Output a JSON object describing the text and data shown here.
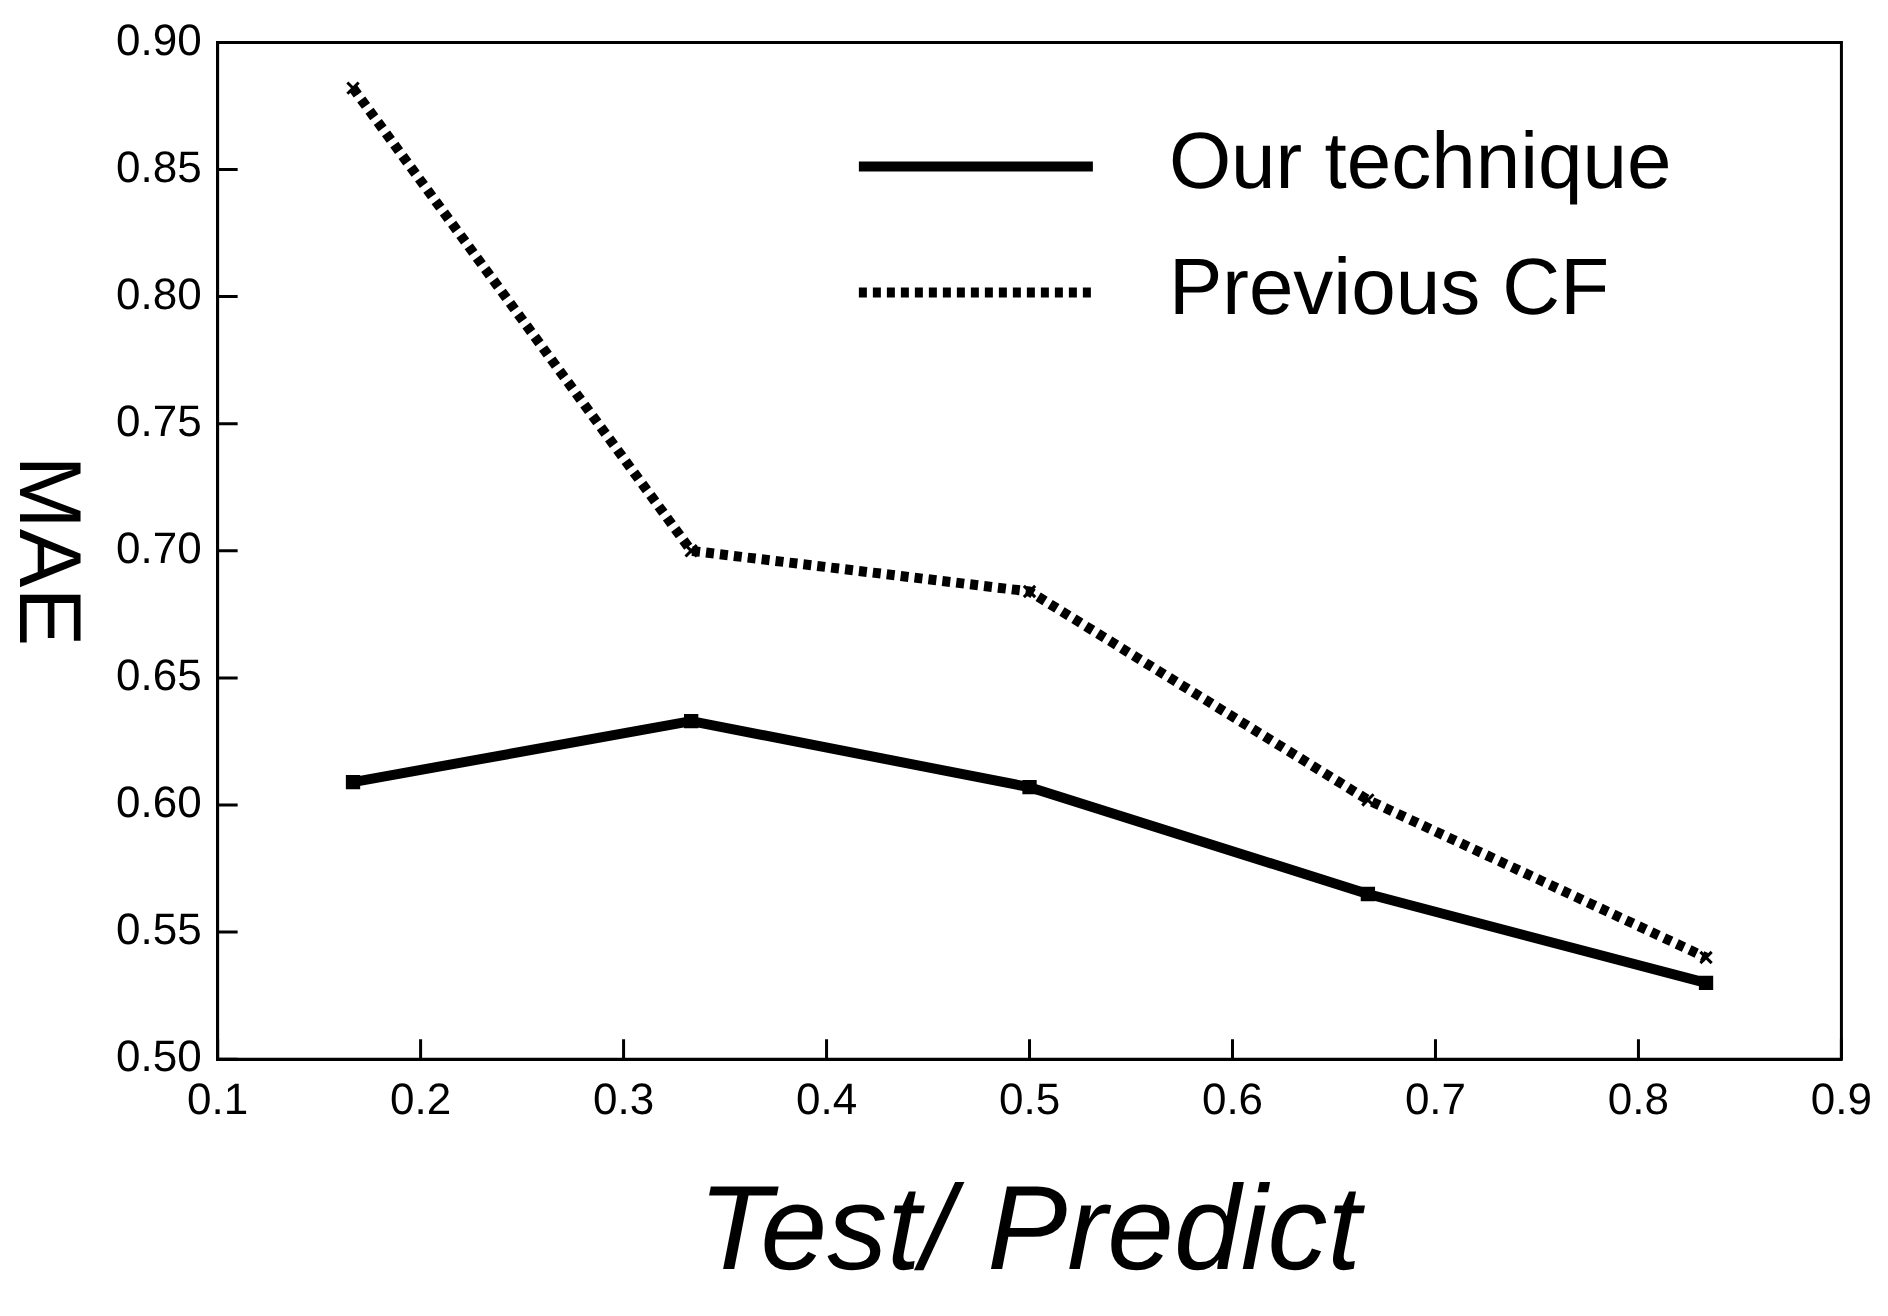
{
  "chart_data": {
    "type": "line",
    "xlabel": "Test/ Predict",
    "ylabel": "MAE",
    "x": [
      0.1667,
      0.3333,
      0.5,
      0.6667,
      0.8333
    ],
    "series": [
      {
        "name": "Our technique",
        "color": "#000000",
        "values": [
          0.609,
          0.633,
          0.607,
          0.565,
          0.53
        ],
        "line_style": "solid",
        "marker": "square"
      },
      {
        "name": "Previous CF",
        "color": "#000000",
        "values": [
          0.882,
          0.7,
          0.684,
          0.602,
          0.54
        ],
        "line_style": "dotted",
        "marker": "cross"
      }
    ],
    "xlim": [
      0.1,
      0.9
    ],
    "xticks": [
      0.1,
      0.2,
      0.3,
      0.4,
      0.5,
      0.6,
      0.7,
      0.8,
      0.9
    ],
    "ylim": [
      0.5,
      0.9
    ],
    "yticks": [
      {
        "value": 0.5,
        "label": "0.50"
      },
      {
        "value": 0.55,
        "label": "0.55"
      },
      {
        "value": 0.6,
        "label": "0.60"
      },
      {
        "value": 0.65,
        "label": "0.65"
      },
      {
        "value": 0.7,
        "label": "0.70"
      },
      {
        "value": 0.75,
        "label": "0.75"
      },
      {
        "value": 0.8,
        "label": "0.80"
      },
      {
        "value": 0.85,
        "label": "0.85"
      },
      {
        "value": 0.9,
        "label": "0.90"
      }
    ],
    "grid": false,
    "legend": "top right"
  }
}
